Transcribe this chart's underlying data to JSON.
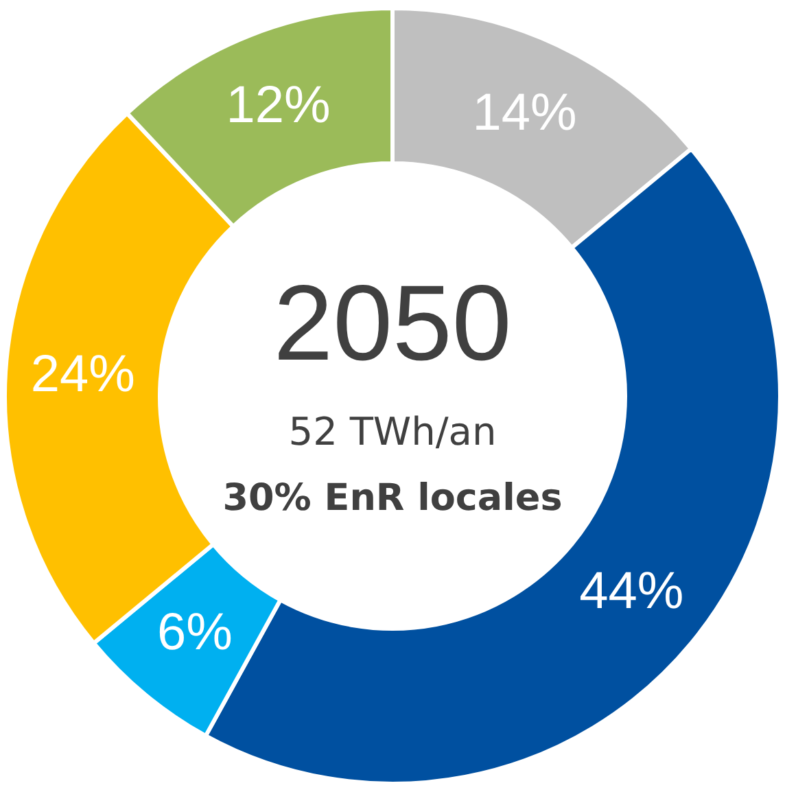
{
  "chart_data": {
    "type": "donut",
    "title": "2050",
    "subtitle": "52 TWh/an",
    "annotations": [
      "30% EnR locales"
    ],
    "categories": [
      null,
      null,
      null,
      null,
      null
    ],
    "values": [
      14,
      44,
      6,
      24,
      12
    ],
    "colors": [
      "#bfbfbf",
      "#0050a0",
      "#00b0f0",
      "#ffc000",
      "#9bbb59"
    ],
    "value_labels": [
      "14%",
      "44%",
      "6%",
      "24%",
      "12%"
    ],
    "legend": false
  }
}
